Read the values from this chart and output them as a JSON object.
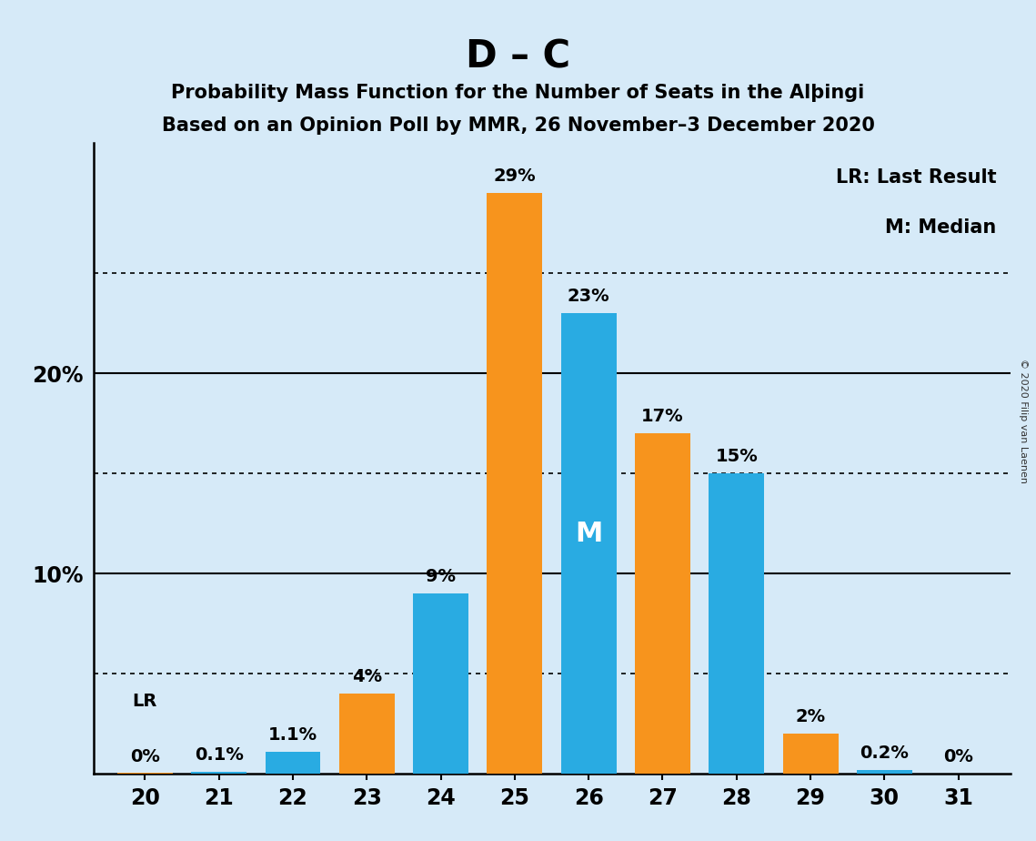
{
  "seats": [
    20,
    21,
    22,
    23,
    24,
    25,
    26,
    27,
    28,
    29,
    30,
    31
  ],
  "blue_values": [
    0.0,
    0.1,
    1.1,
    0.0,
    9.0,
    0.0,
    23.0,
    0.0,
    15.0,
    0.0,
    0.2,
    0.0
  ],
  "orange_values": [
    0.05,
    0.0,
    0.0,
    4.0,
    0.0,
    29.0,
    0.0,
    17.0,
    0.0,
    2.0,
    0.0,
    0.0
  ],
  "blue_labels": [
    "0%",
    "0.1%",
    "1.1%",
    "",
    "9%",
    "",
    "23%",
    "",
    "15%",
    "",
    "0.2%",
    "0%"
  ],
  "orange_labels": [
    "",
    "",
    "",
    "4%",
    "",
    "29%",
    "",
    "17%",
    "",
    "2%",
    "",
    ""
  ],
  "blue_color": "#29ABE2",
  "orange_color": "#F7941D",
  "background_color": "#D6EAF8",
  "title_main": "D – C",
  "title_sub1": "Probability Mass Function for the Number of Seats in the Alþingi",
  "title_sub2": "Based on an Opinion Poll by MMR, 26 November–3 December 2020",
  "legend_text1": "LR: Last Result",
  "legend_text2": "M: Median",
  "median_seat": 26,
  "lr_seat": 20,
  "lr_label": "LR",
  "solid_lines": [
    10,
    20
  ],
  "dotted_lines": [
    5,
    15,
    25
  ],
  "ytick_positions": [
    10,
    20
  ],
  "ytick_labels": [
    "10%",
    "20%"
  ],
  "copyright": "© 2020 Filip van Laenen",
  "bar_width": 0.75,
  "xlim": [
    19.3,
    31.7
  ],
  "ylim": [
    0,
    31.5
  ],
  "title_fontsize": 30,
  "subtitle_fontsize": 15,
  "label_fontsize": 14,
  "ytick_fontsize": 17,
  "xtick_fontsize": 17
}
